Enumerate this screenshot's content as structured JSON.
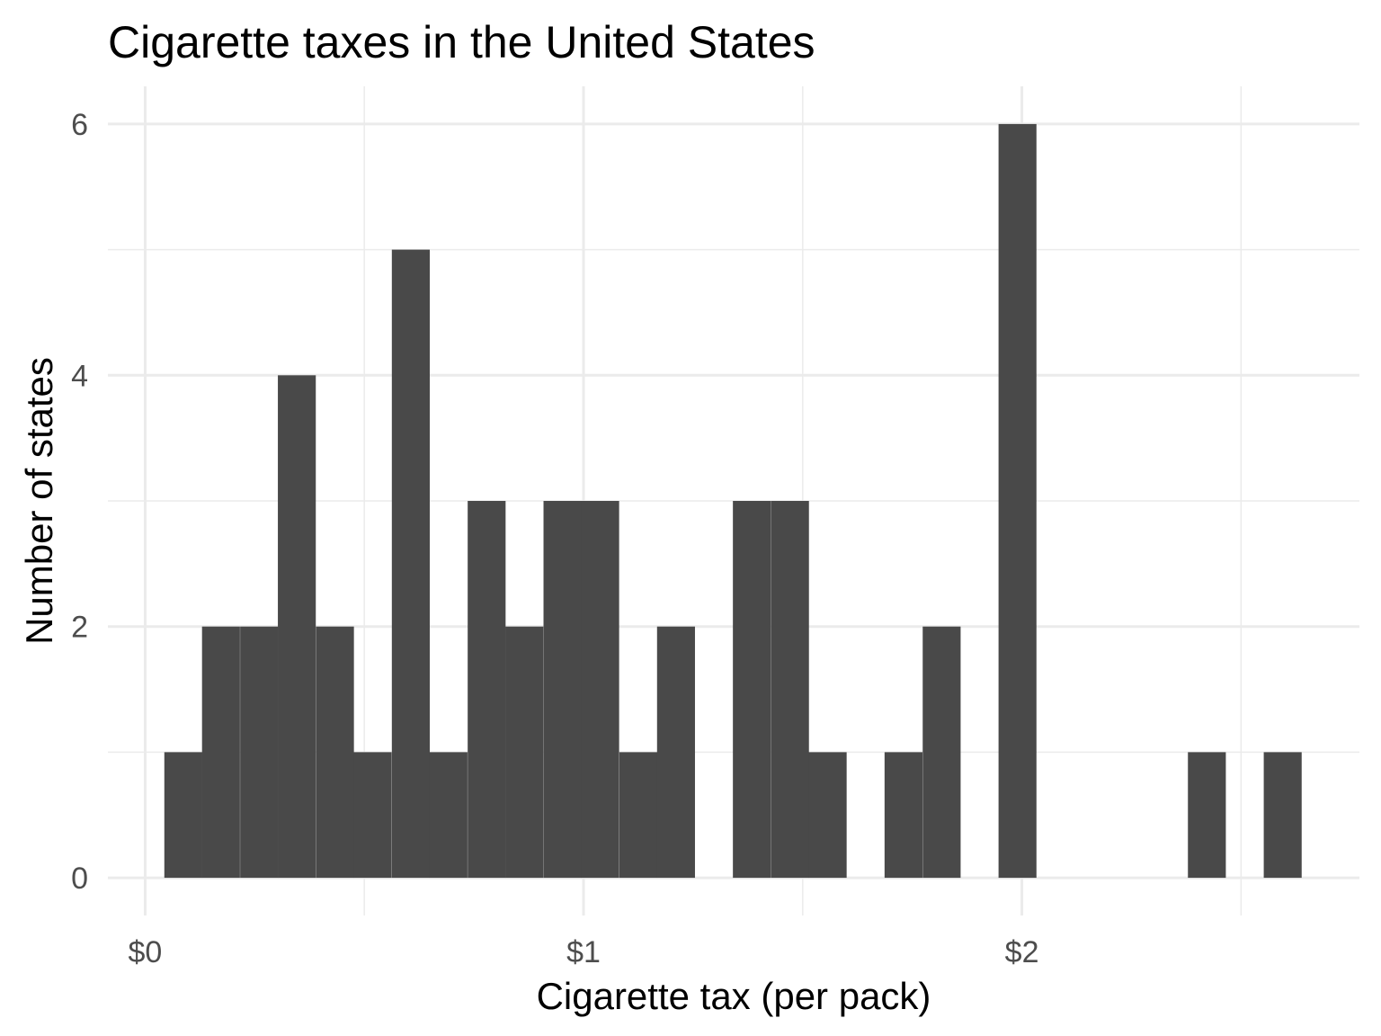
{
  "chart_data": {
    "type": "bar",
    "title": "Cigarette taxes in the United States",
    "xlabel": "Cigarette tax (per pack)",
    "ylabel": "Number of states",
    "xlim": [
      -0.085,
      2.77
    ],
    "ylim": [
      -0.3,
      6.3
    ],
    "x_ticks": [
      {
        "value": 0,
        "label": "$0"
      },
      {
        "value": 1,
        "label": "$1"
      },
      {
        "value": 2,
        "label": "$2"
      }
    ],
    "x_minor_ticks": [
      0.5,
      1.5,
      2.5
    ],
    "y_ticks": [
      {
        "value": 0,
        "label": "0"
      },
      {
        "value": 2,
        "label": "2"
      },
      {
        "value": 4,
        "label": "4"
      },
      {
        "value": 6,
        "label": "6"
      }
    ],
    "y_minor_ticks": [
      1,
      3,
      5
    ],
    "bin_width": 0.0865,
    "bin_centers": [
      0.087,
      0.173,
      0.26,
      0.346,
      0.433,
      0.519,
      0.606,
      0.692,
      0.779,
      0.865,
      0.952,
      1.038,
      1.125,
      1.211,
      1.298,
      1.384,
      1.471,
      1.557,
      1.644,
      1.73,
      1.817,
      1.903,
      1.99,
      2.076,
      2.163,
      2.249,
      2.336,
      2.422,
      2.509,
      2.595
    ],
    "counts": [
      1,
      2,
      2,
      4,
      2,
      1,
      5,
      1,
      3,
      2,
      3,
      3,
      1,
      2,
      0,
      3,
      3,
      1,
      0,
      1,
      2,
      0,
      6,
      0,
      0,
      0,
      0,
      1,
      0,
      1
    ],
    "grid": true,
    "bar_color": "#494949",
    "grid_color": "#ebebeb",
    "background": "#ffffff"
  }
}
